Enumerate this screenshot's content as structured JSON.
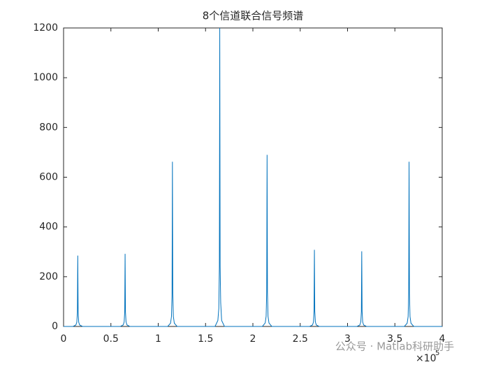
{
  "chart_data": {
    "type": "line",
    "title": "8个信道联合信号频谱",
    "x": [
      0,
      0.1,
      0.13,
      0.14,
      0.146,
      0.15,
      0.154,
      0.16,
      0.17,
      0.2,
      0.6,
      0.63,
      0.64,
      0.646,
      0.65,
      0.654,
      0.66,
      0.67,
      0.7,
      1.1,
      1.13,
      1.14,
      1.146,
      1.15,
      1.154,
      1.16,
      1.17,
      1.2,
      1.6,
      1.63,
      1.64,
      1.646,
      1.65,
      1.654,
      1.66,
      1.67,
      1.7,
      2.1,
      2.13,
      2.14,
      2.146,
      2.15,
      2.154,
      2.16,
      2.17,
      2.2,
      2.6,
      2.63,
      2.64,
      2.646,
      2.65,
      2.654,
      2.66,
      2.67,
      2.7,
      3.1,
      3.13,
      3.14,
      3.146,
      3.15,
      3.154,
      3.16,
      3.17,
      3.2,
      3.6,
      3.63,
      3.64,
      3.646,
      3.65,
      3.654,
      3.66,
      3.67,
      3.7,
      4
    ],
    "series": [
      {
        "color": "#0072bd",
        "values": [
          0,
          0,
          6,
          17,
          57,
          285,
          57,
          17,
          6,
          0,
          0,
          6,
          18,
          58,
          292,
          58,
          18,
          6,
          0,
          0,
          13,
          40,
          132,
          662,
          132,
          40,
          13,
          0,
          0,
          24,
          72,
          240,
          1200,
          240,
          95,
          24,
          0,
          0,
          14,
          41,
          138,
          690,
          138,
          41,
          14,
          0,
          0,
          6,
          18,
          62,
          308,
          62,
          18,
          6,
          0,
          0,
          6,
          18,
          60,
          302,
          60,
          18,
          6,
          0,
          0,
          13,
          40,
          132,
          662,
          132,
          40,
          13,
          0,
          0
        ]
      }
    ],
    "xlim": [
      0,
      4
    ],
    "xticks": [
      0,
      0.5,
      1,
      1.5,
      2,
      2.5,
      3,
      3.5,
      4
    ],
    "ylim": [
      0,
      1200
    ],
    "yticks": [
      0,
      200,
      400,
      600,
      800,
      1000,
      1200
    ],
    "x_exponent_base": "×10",
    "x_exponent": "5",
    "grid": false
  },
  "watermark": "公众号 · Matlab科研助手"
}
